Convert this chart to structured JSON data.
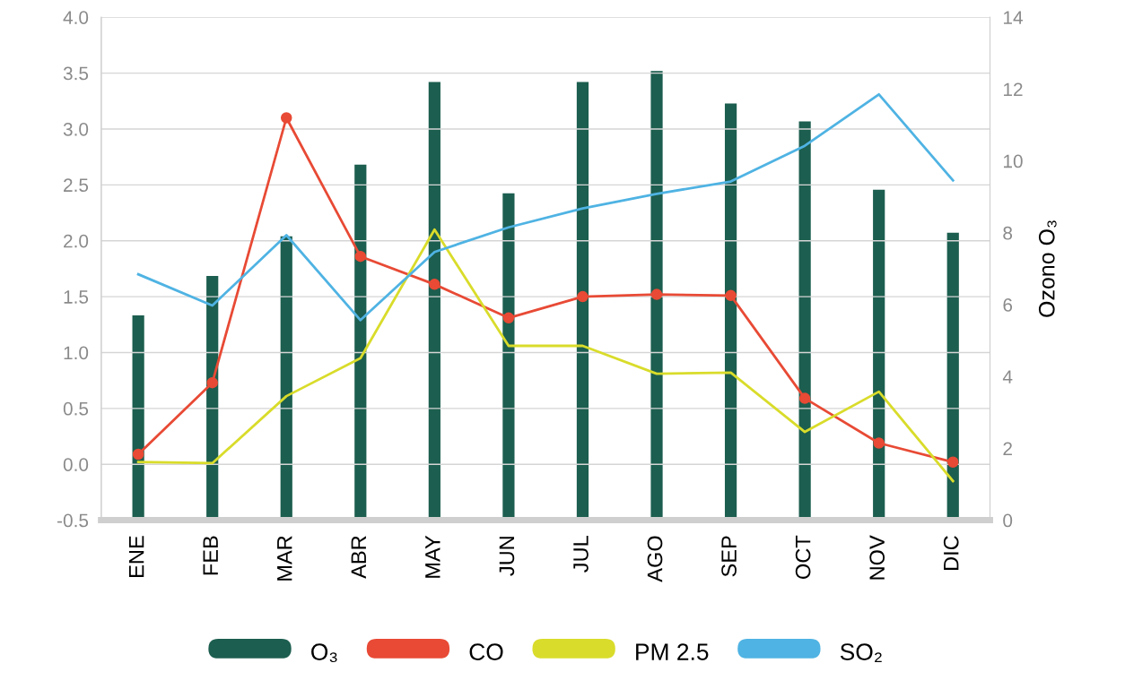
{
  "chart_data": {
    "type": "line",
    "categories": [
      "ENE",
      "FEB",
      "MAR",
      "ABR",
      "MAY",
      "JUN",
      "JUL",
      "AGO",
      "SEP",
      "OCT",
      "NOV",
      "DIC"
    ],
    "series": [
      {
        "name": "O₃",
        "type": "bar",
        "axis": "y2",
        "color": "#1c5e4f",
        "values": [
          5.7,
          6.8,
          7.9,
          9.9,
          12.2,
          9.1,
          12.2,
          12.5,
          11.6,
          11.1,
          9.2,
          8.0
        ]
      },
      {
        "name": "CO",
        "marker": "circle",
        "color": "#e84a35",
        "values": [
          0.09,
          0.73,
          3.1,
          1.86,
          1.61,
          1.31,
          1.5,
          1.52,
          1.51,
          0.59,
          0.19,
          0.02
        ]
      },
      {
        "name": "PM 2.5",
        "color": "#d9dc2a",
        "values": [
          0.02,
          0.01,
          0.61,
          0.95,
          2.1,
          1.06,
          1.06,
          0.81,
          0.82,
          0.29,
          0.65,
          -0.15
        ]
      },
      {
        "name": "SO₂",
        "color": "#4fb3e3",
        "values": [
          1.7,
          1.42,
          2.05,
          1.29,
          1.9,
          2.12,
          2.29,
          2.42,
          2.53,
          2.85,
          3.31,
          2.54
        ]
      }
    ],
    "y2label": "Ozono O₃",
    "ylim": [
      -0.5,
      4.0
    ],
    "yticks": [
      {
        "value": -0.5,
        "label": "-0.5"
      },
      {
        "value": 0,
        "label": "0.0"
      },
      {
        "value": 0.5,
        "label": "0.5"
      },
      {
        "value": 1,
        "label": "1.0"
      },
      {
        "value": 1.5,
        "label": "1.5"
      },
      {
        "value": 2,
        "label": "2.0"
      },
      {
        "value": 2.5,
        "label": "2.5"
      },
      {
        "value": 3,
        "label": "3.0"
      },
      {
        "value": 3.5,
        "label": "3.5"
      },
      {
        "value": 4,
        "label": "4.0"
      }
    ],
    "y2lim": [
      0,
      14
    ],
    "y2ticks": [
      0,
      2,
      4,
      6,
      8,
      10,
      12,
      14
    ],
    "grid": "y",
    "legend": "bottom"
  }
}
